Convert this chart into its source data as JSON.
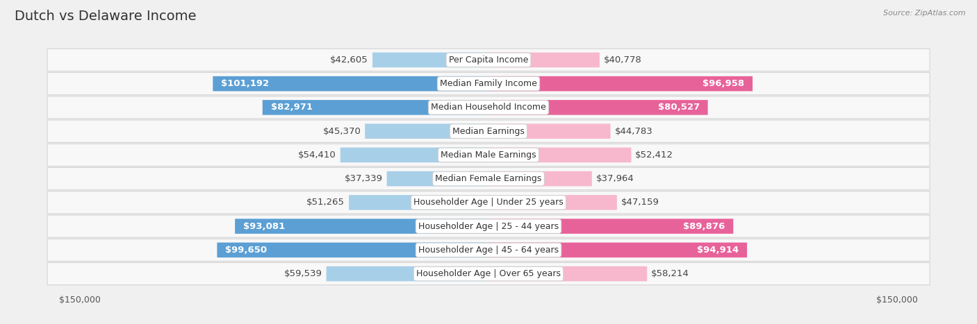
{
  "title": "Dutch vs Delaware Income",
  "source": "Source: ZipAtlas.com",
  "categories": [
    "Per Capita Income",
    "Median Family Income",
    "Median Household Income",
    "Median Earnings",
    "Median Male Earnings",
    "Median Female Earnings",
    "Householder Age | Under 25 years",
    "Householder Age | 25 - 44 years",
    "Householder Age | 45 - 64 years",
    "Householder Age | Over 65 years"
  ],
  "dutch_values": [
    42605,
    101192,
    82971,
    45370,
    54410,
    37339,
    51265,
    93081,
    99650,
    59539
  ],
  "delaware_values": [
    40778,
    96958,
    80527,
    44783,
    52412,
    37964,
    47159,
    89876,
    94914,
    58214
  ],
  "dutch_labels": [
    "$42,605",
    "$101,192",
    "$82,971",
    "$45,370",
    "$54,410",
    "$37,339",
    "$51,265",
    "$93,081",
    "$99,650",
    "$59,539"
  ],
  "delaware_labels": [
    "$40,778",
    "$96,958",
    "$80,527",
    "$44,783",
    "$52,412",
    "$37,964",
    "$47,159",
    "$89,876",
    "$94,914",
    "$58,214"
  ],
  "dutch_color_light": "#a8cfe8",
  "dutch_color_dark": "#5b9fd4",
  "delaware_color_light": "#f7b8ce",
  "delaware_color_dark": "#e8629a",
  "dutch_threshold": 65000,
  "delaware_threshold": 65000,
  "max_value": 150000,
  "bg_color": "#f0f0f0",
  "row_bg": "#f8f8f8",
  "title_fontsize": 14,
  "label_fontsize": 9.5,
  "category_fontsize": 9
}
